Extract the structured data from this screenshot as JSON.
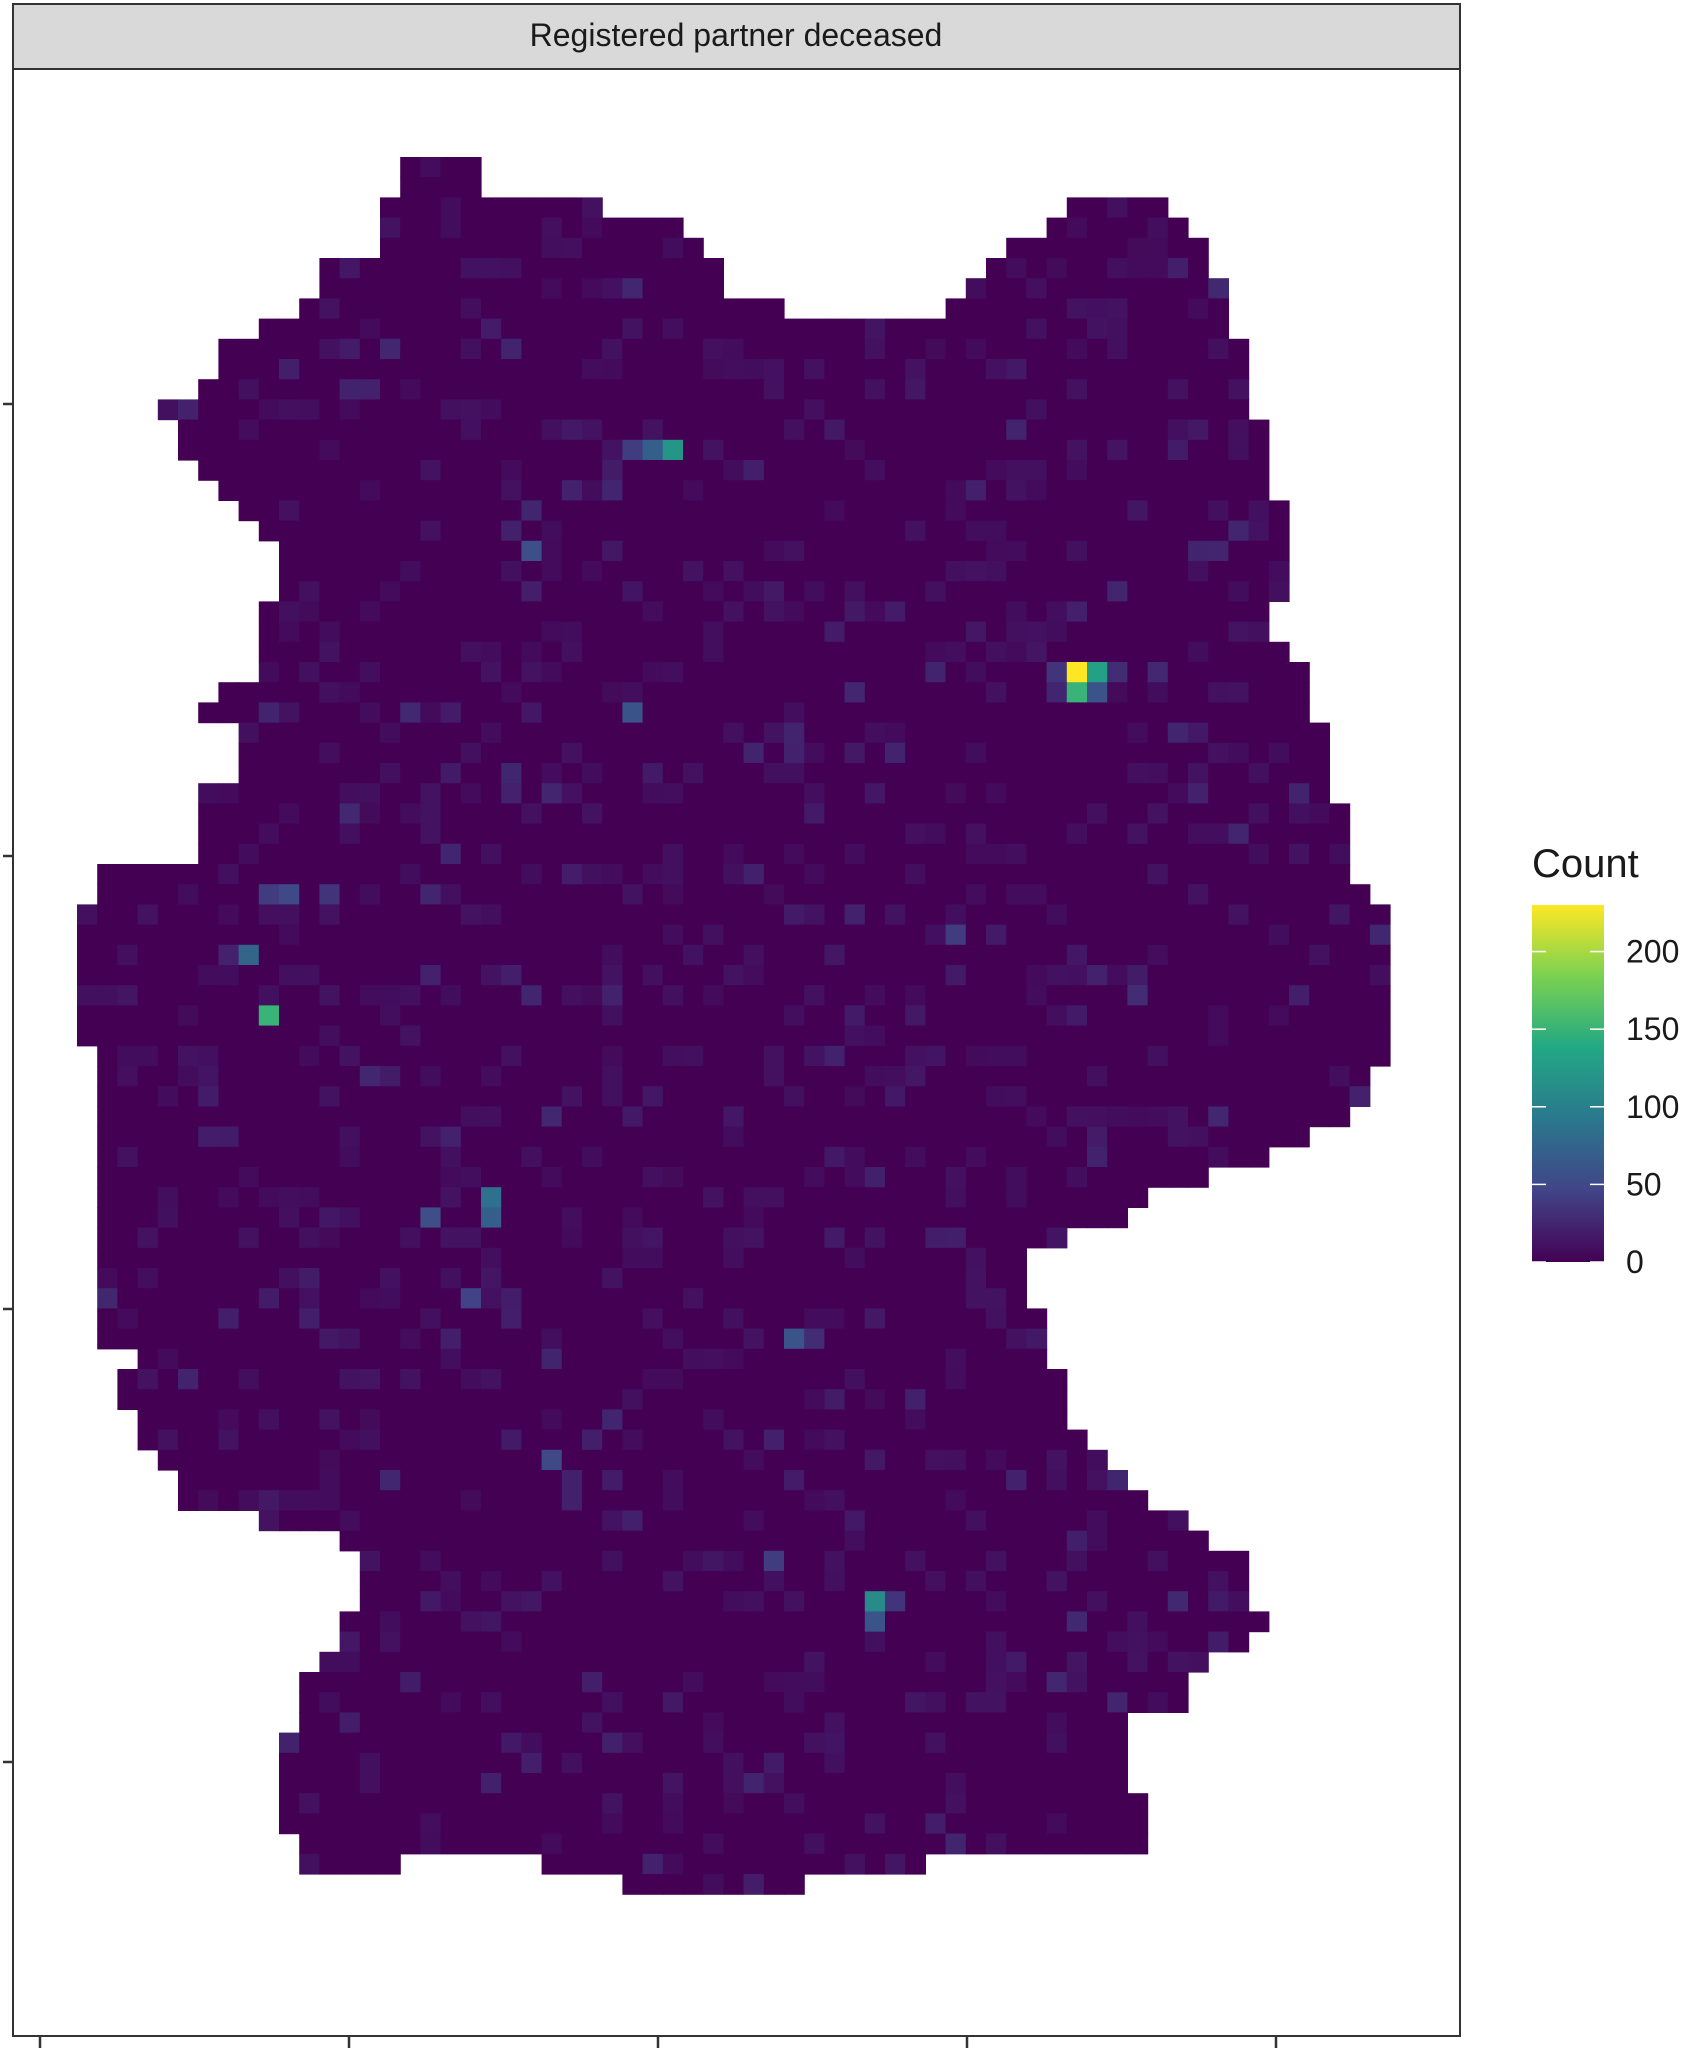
{
  "chart_data": {
    "type": "heatmap",
    "facet_title": "Registered partner deceased",
    "xlabel": "",
    "ylabel": "",
    "x_tick_labels": [],
    "y_tick_labels": [],
    "legend": {
      "title": "Count",
      "placement": "right",
      "range": [
        0,
        230
      ],
      "ticks": [
        0,
        50,
        100,
        150,
        200
      ],
      "tick_labels": [
        "0",
        "50",
        "100",
        "150",
        "200"
      ],
      "colormap": "viridis",
      "colors": [
        "#440154",
        "#414487",
        "#2A788E",
        "#22A884",
        "#7AD151",
        "#FDE725"
      ]
    },
    "grid": false,
    "colors": {
      "panel_border": "#333333",
      "strip_fill": "#d9d9d9",
      "background": "#ffffff"
    },
    "cell_units": "grid cells (col, row) on a 66 x 86 lattice, row 0 = north",
    "hotspots": [
      {
        "col": 49,
        "row": 25,
        "value": 230
      },
      {
        "col": 50,
        "row": 25,
        "value": 130
      },
      {
        "col": 49,
        "row": 26,
        "value": 150
      },
      {
        "col": 50,
        "row": 26,
        "value": 60
      },
      {
        "col": 48,
        "row": 25,
        "value": 35
      },
      {
        "col": 48,
        "row": 26,
        "value": 25
      },
      {
        "col": 51,
        "row": 25,
        "value": 30
      },
      {
        "col": 29,
        "row": 14,
        "value": 120
      },
      {
        "col": 28,
        "row": 14,
        "value": 70
      },
      {
        "col": 27,
        "row": 14,
        "value": 40
      },
      {
        "col": 22,
        "row": 19,
        "value": 55
      },
      {
        "col": 27,
        "row": 27,
        "value": 60
      },
      {
        "col": 9,
        "row": 42,
        "value": 150
      },
      {
        "col": 8,
        "row": 39,
        "value": 75
      },
      {
        "col": 10,
        "row": 36,
        "value": 50
      },
      {
        "col": 9,
        "row": 36,
        "value": 40
      },
      {
        "col": 12,
        "row": 36,
        "value": 35
      },
      {
        "col": 20,
        "row": 51,
        "value": 85
      },
      {
        "col": 20,
        "row": 52,
        "value": 70
      },
      {
        "col": 17,
        "row": 52,
        "value": 55
      },
      {
        "col": 19,
        "row": 56,
        "value": 45
      },
      {
        "col": 35,
        "row": 58,
        "value": 60
      },
      {
        "col": 36,
        "row": 58,
        "value": 30
      },
      {
        "col": 43,
        "row": 38,
        "value": 40
      },
      {
        "col": 52,
        "row": 41,
        "value": 30
      },
      {
        "col": 23,
        "row": 64,
        "value": 50
      },
      {
        "col": 34,
        "row": 69,
        "value": 40
      },
      {
        "col": 39,
        "row": 71,
        "value": 110
      },
      {
        "col": 39,
        "row": 72,
        "value": 60
      },
      {
        "col": 40,
        "row": 71,
        "value": 35
      }
    ]
  }
}
